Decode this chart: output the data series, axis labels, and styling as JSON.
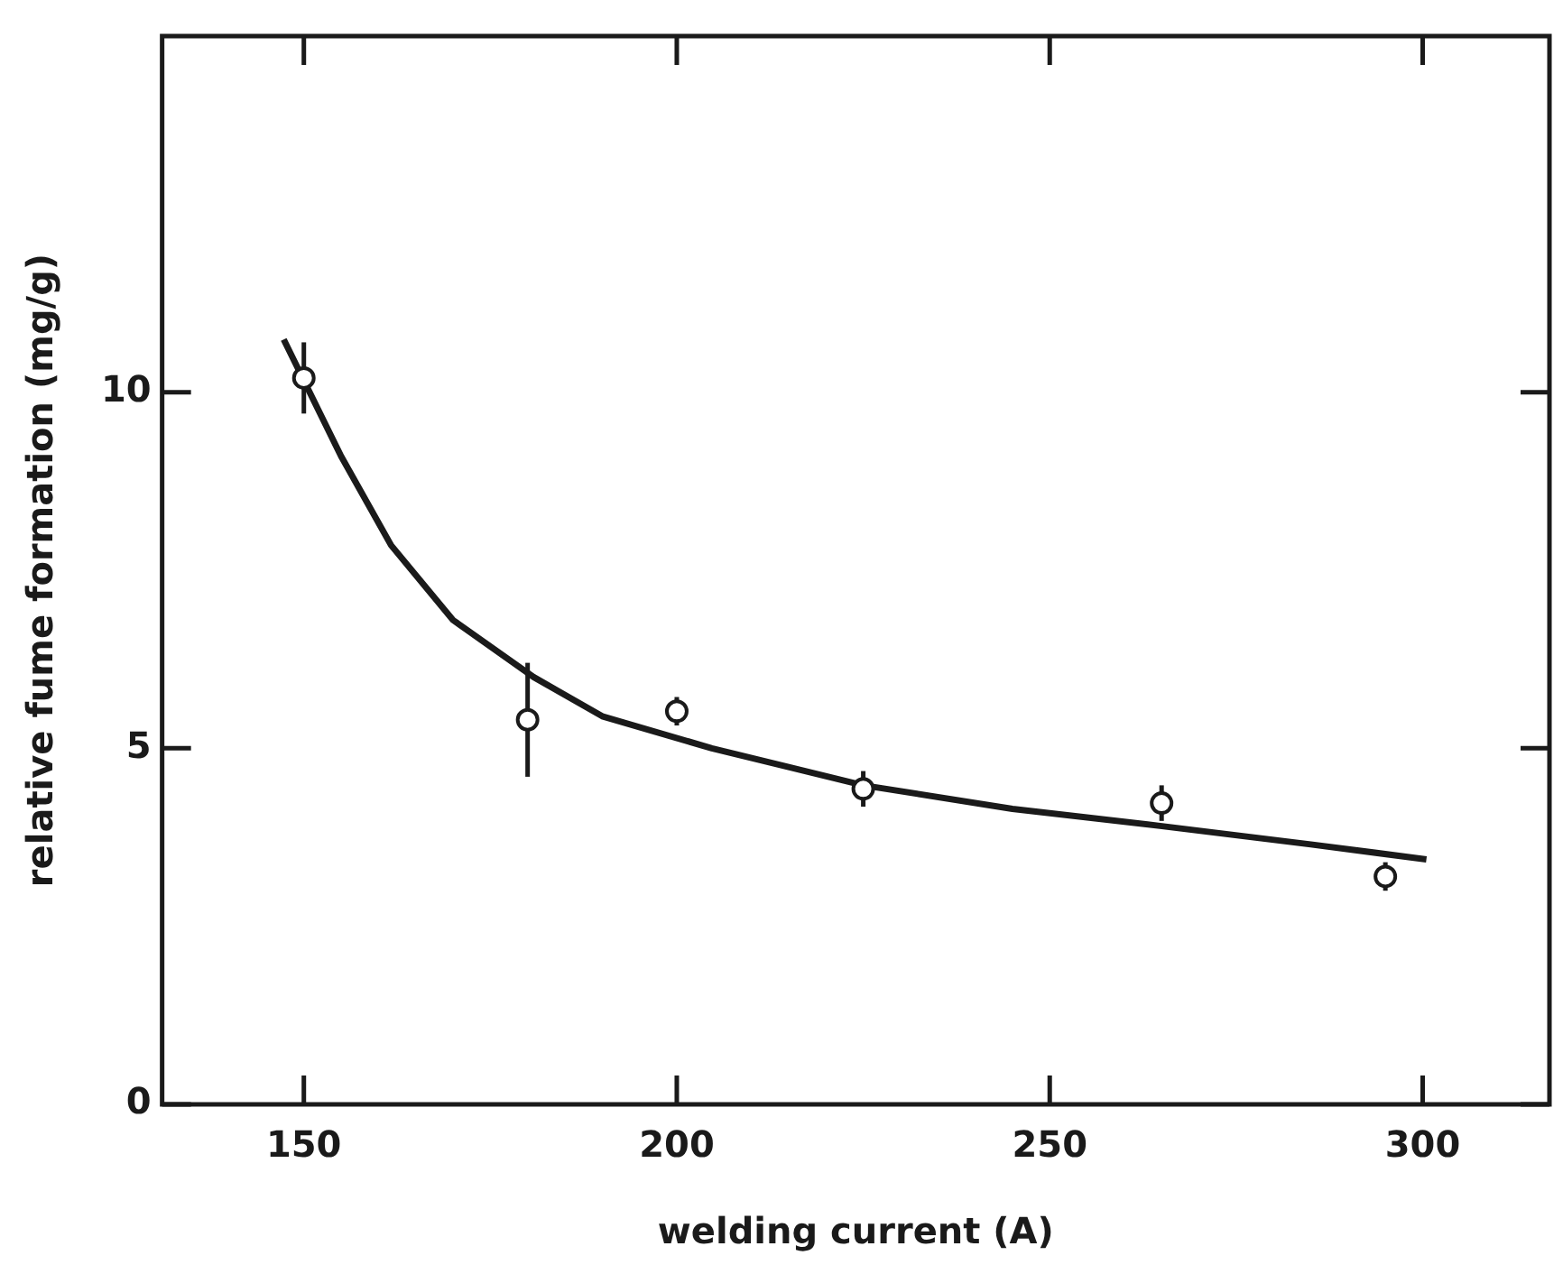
{
  "chart_data": {
    "type": "scatter",
    "xlabel": "welding current (A)",
    "ylabel": "relative fume formation (mg/g)",
    "xlim": [
      131,
      317
    ],
    "xticks": [
      150,
      200,
      250,
      300
    ],
    "ylim": [
      0,
      15
    ],
    "yticks": [
      0,
      5,
      10
    ],
    "grid": false,
    "legend": false,
    "marker": "circle",
    "series": [
      {
        "color": "#1a1a1a",
        "x": [
          150,
          180,
          200,
          225,
          265,
          295
        ],
        "values": [
          10.2,
          5.4,
          5.52,
          4.43,
          4.23,
          3.2
        ],
        "errors": [
          0.5,
          0.8,
          0.2,
          0.25,
          0.25,
          0.2
        ]
      },
      {
        "type": "line",
        "color": "#1a1a1a",
        "marker": "none",
        "line_style": "solid",
        "x": [
          147.3,
          155,
          161.7,
          170,
          180.8,
          190,
          204.7,
          214.5,
          225,
          245,
          264.8,
          285,
          300.5
        ],
        "values": [
          10.74,
          9.1,
          7.85,
          6.8,
          6.0,
          5.45,
          5.0,
          4.75,
          4.48,
          4.15,
          3.91,
          3.65,
          3.44
        ]
      }
    ]
  }
}
